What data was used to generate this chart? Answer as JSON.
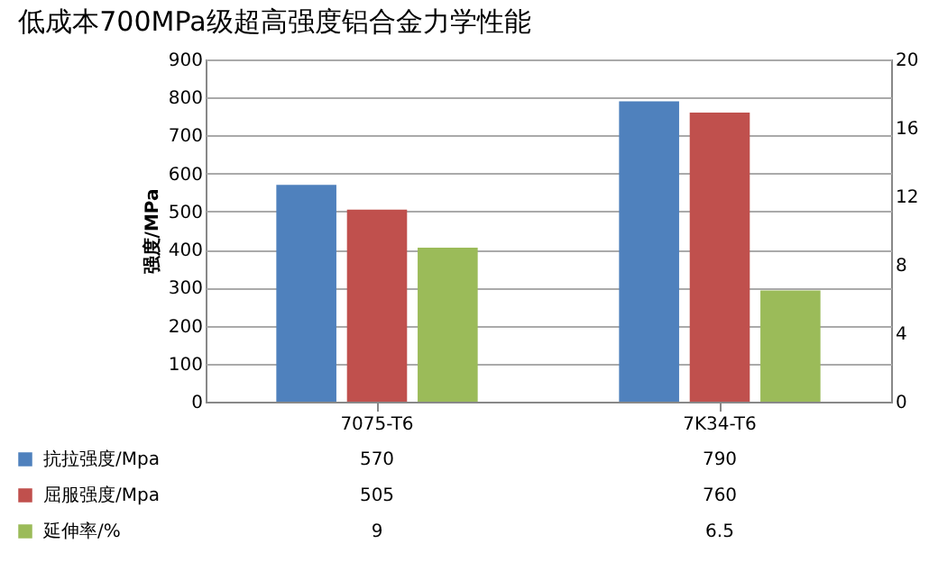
{
  "chart_data": {
    "type": "bar",
    "title": "低成本700MPa级超高强度铝合金力学性能",
    "ylabel": "强度/MPa",
    "categories": [
      "7075-T6",
      "7K34-T6"
    ],
    "series": [
      {
        "name": "抗拉强度/Mpa",
        "color": "#4f81bd",
        "values": [
          570,
          790
        ]
      },
      {
        "name": "屈服强度/Mpa",
        "color": "#c0504d",
        "values": [
          505,
          760
        ]
      },
      {
        "name": "延伸率/%",
        "color": "#9bbb59",
        "values": [
          9,
          6.5
        ],
        "axis": "y2"
      }
    ],
    "ylim": [
      0,
      900
    ],
    "yticks": [
      0,
      100,
      200,
      300,
      400,
      500,
      600,
      700,
      800,
      900
    ],
    "y2lim": [
      0,
      20
    ],
    "y2ticks": [
      0,
      4,
      8,
      12,
      16,
      20
    ],
    "grid": "y",
    "data_labels": true,
    "legend": "bottom"
  }
}
